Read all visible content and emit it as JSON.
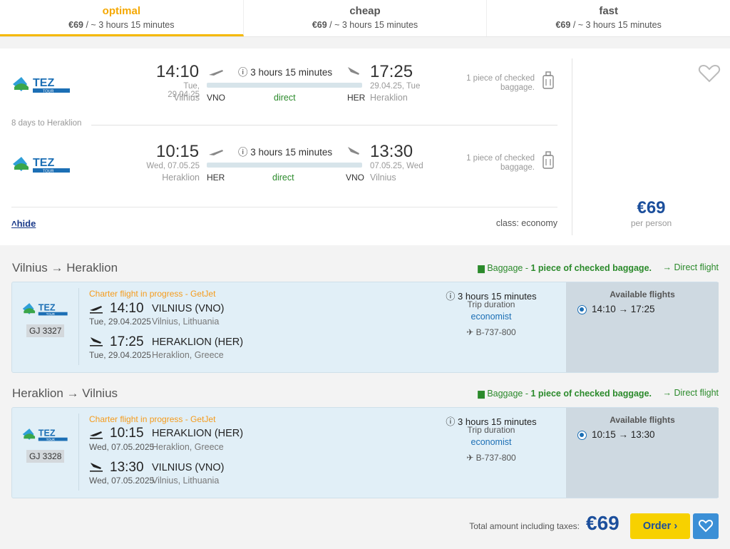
{
  "tabs": [
    {
      "name": "optimal",
      "price": "€69",
      "sub": " / ~ 3 hours 15 minutes"
    },
    {
      "name": "cheap",
      "price": "€69",
      "sub": " / ~ 3 hours 15 minutes"
    },
    {
      "name": "fast",
      "price": "€69",
      "sub": " / ~ 3 hours 15 minutes"
    }
  ],
  "summary": {
    "outbound": {
      "dep_time": "14:10",
      "dep_date": "Tue, 29.04.25",
      "dep_city": "Vilnius",
      "dep_code": "VNO",
      "duration": "3 hours 15 minutes",
      "type": "direct",
      "arr_time": "17:25",
      "arr_date": "29.04.25, Tue",
      "arr_city": "Heraklion",
      "arr_code": "HER",
      "baggage": "1 piece of checked baggage."
    },
    "days_between": "8 days to Heraklion",
    "inbound": {
      "dep_time": "10:15",
      "dep_date": "Wed, 07.05.25",
      "dep_city": "Heraklion",
      "dep_code": "HER",
      "duration": "3 hours 15 minutes",
      "type": "direct",
      "arr_time": "13:30",
      "arr_date": "07.05.25, Wed",
      "arr_city": "Vilnius",
      "arr_code": "VNO",
      "baggage": "1 piece of checked baggage."
    },
    "hide_label": "hide",
    "class_label": "class: economy",
    "price": "€69",
    "per_person": "per person"
  },
  "segments": [
    {
      "title": "Vilnius → Heraklion",
      "baggage_prefix": "Baggage - ",
      "baggage_bold": "1 piece of checked baggage.",
      "direct_label": "→ Direct flight",
      "flight_no": "GJ 3327",
      "charter": "Charter flight in progress - GetJet",
      "dep_time": "14:10",
      "dep_place": "VILNIUS (VNO)",
      "dep_date": "Tue, 29.04.2025",
      "dep_city": "Vilnius, Lithuania",
      "arr_time": "17:25",
      "arr_place": "HERAKLION (HER)",
      "arr_date": "Tue, 29.04.2025",
      "arr_city": "Heraklion, Greece",
      "duration": "3 hours 15 minutes",
      "trip_label": "Trip duration",
      "class": "economist",
      "aircraft": "✈ B-737-800",
      "avail_title": "Available flights",
      "avail_option": "14:10 → 17:25"
    },
    {
      "title": "Heraklion → Vilnius",
      "baggage_prefix": "Baggage - ",
      "baggage_bold": "1 piece of checked baggage.",
      "direct_label": "→ Direct flight",
      "flight_no": "GJ 3328",
      "charter": "Charter flight in progress - GetJet",
      "dep_time": "10:15",
      "dep_place": "HERAKLION (HER)",
      "dep_date": "Wed, 07.05.2025",
      "dep_city": "Heraklion, Greece",
      "arr_time": "13:30",
      "arr_place": "VILNIUS (VNO)",
      "arr_date": "Wed, 07.05.2025",
      "arr_city": "Vilnius, Lithuania",
      "duration": "3 hours 15 minutes",
      "trip_label": "Trip duration",
      "class": "economist",
      "aircraft": "✈ B-737-800",
      "avail_title": "Available flights",
      "avail_option": "10:15 → 13:30"
    }
  ],
  "footer": {
    "total_label": "Total amount including taxes:",
    "total_price": "€69",
    "order_label": "Order ›"
  },
  "airline_logo_text": "TEZ",
  "airline_logo_sub": "TOUR",
  "colors": {
    "accent": "#f5b800",
    "price": "#1c4f9c",
    "green": "#2b8a2b",
    "charter": "#f59b1b"
  }
}
